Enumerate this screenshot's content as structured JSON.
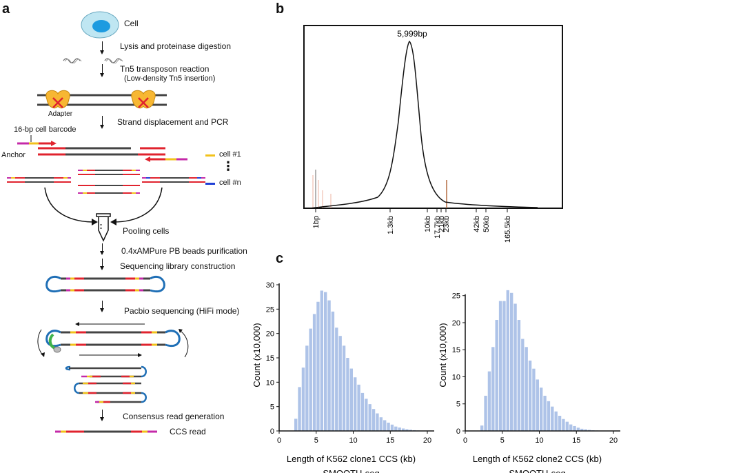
{
  "panel_labels": {
    "a": "a",
    "b": "b",
    "c": "c"
  },
  "panel_a": {
    "cell_label": "Cell",
    "step1": "Lysis and proteinase digestion",
    "step2": "Tn5 transposon reaction",
    "step2_sub": "(Low-density Tn5 insertion)",
    "adapter_label": "Adapter",
    "step3": "Strand displacement and PCR",
    "barcode_label": "16-bp cell barcode",
    "anchor_label": "Anchor",
    "cell1_label": "cell #1",
    "celln_label": "cell #n",
    "ellipsis": "⋮",
    "pooling_label": "Pooling cells",
    "step4": "0.4xAMPure PB beads purification",
    "step5": "Sequencing library construction",
    "step6": "Pacbio sequencing (HiFi mode)",
    "step7": "Consensus read generation",
    "ccs_label": "CCS read",
    "colors": {
      "red": "#e0232e",
      "yellow": "#f2c21b",
      "magenta": "#c42aa8",
      "blue": "#1f6fb6",
      "dark": "#444444",
      "green": "#3fb24a",
      "cell": "#bfe6f2",
      "nucleus": "#1d9be0"
    }
  },
  "panel_b": {
    "peak_label": "5,999bp",
    "ticks": [
      "1bp",
      "1.3kb",
      "10kb",
      "17.7kb",
      "21kb",
      "23kb",
      "42kb",
      "50kb",
      "165.5kb"
    ]
  },
  "chart_data": [
    {
      "type": "bar",
      "title": "",
      "xlabel": "Length of K562 clone1 CCS (kb)",
      "subtitle": "SMOOTH-seq",
      "ylabel": "Count (x10,000)",
      "xlim": [
        0,
        20
      ],
      "ylim": [
        0,
        30
      ],
      "xticks": [
        "0",
        "5",
        "10",
        "15",
        "20"
      ],
      "yticks": [
        "0",
        "5",
        "10",
        "15",
        "20",
        "25",
        "30"
      ],
      "bin_width": 0.5,
      "bin_starts": [
        2,
        2.5,
        3,
        3.5,
        4,
        4.5,
        5,
        5.5,
        6,
        6.5,
        7,
        7.5,
        8,
        8.5,
        9,
        9.5,
        10,
        10.5,
        11,
        11.5,
        12,
        12.5,
        13,
        13.5,
        14,
        14.5,
        15,
        15.5,
        16,
        16.5,
        17,
        17.5,
        18,
        18.5
      ],
      "values": [
        2.5,
        9,
        13,
        17.5,
        21,
        24,
        26.5,
        28.8,
        28.5,
        26.8,
        24.5,
        21.2,
        19.5,
        17.5,
        15,
        12.8,
        11,
        9.5,
        7.8,
        6.6,
        5.5,
        4.5,
        3.6,
        2.8,
        2.2,
        1.7,
        1.3,
        0.9,
        0.7,
        0.5,
        0.35,
        0.25,
        0.15,
        0.1
      ],
      "color": "#aec3e8"
    },
    {
      "type": "bar",
      "title": "",
      "xlabel": "Length of K562 clone2 CCS (kb)",
      "subtitle": "SMOOTH-seq",
      "ylabel": "Count (x10,000)",
      "xlim": [
        0,
        20
      ],
      "ylim": [
        0,
        27
      ],
      "xticks": [
        "0",
        "5",
        "10",
        "15",
        "20"
      ],
      "yticks": [
        "0",
        "5",
        "10",
        "15",
        "20",
        "25"
      ],
      "bin_width": 0.5,
      "bin_starts": [
        2,
        2.5,
        3,
        3.5,
        4,
        4.5,
        5,
        5.5,
        6,
        6.5,
        7,
        7.5,
        8,
        8.5,
        9,
        9.5,
        10,
        10.5,
        11,
        11.5,
        12,
        12.5,
        13,
        13.5,
        14,
        14.5,
        15,
        15.5,
        16,
        16.5,
        17,
        17.5,
        18
      ],
      "values": [
        1,
        6.5,
        11,
        15.5,
        20.5,
        24,
        24,
        26,
        25.5,
        23.5,
        20.5,
        17,
        15.5,
        13,
        11.5,
        9.5,
        8,
        6.5,
        5.5,
        4.5,
        3.6,
        2.8,
        2.2,
        1.7,
        1.2,
        0.9,
        0.6,
        0.4,
        0.3,
        0.2,
        0.12,
        0.08,
        0.05
      ],
      "color": "#aec3e8"
    }
  ]
}
